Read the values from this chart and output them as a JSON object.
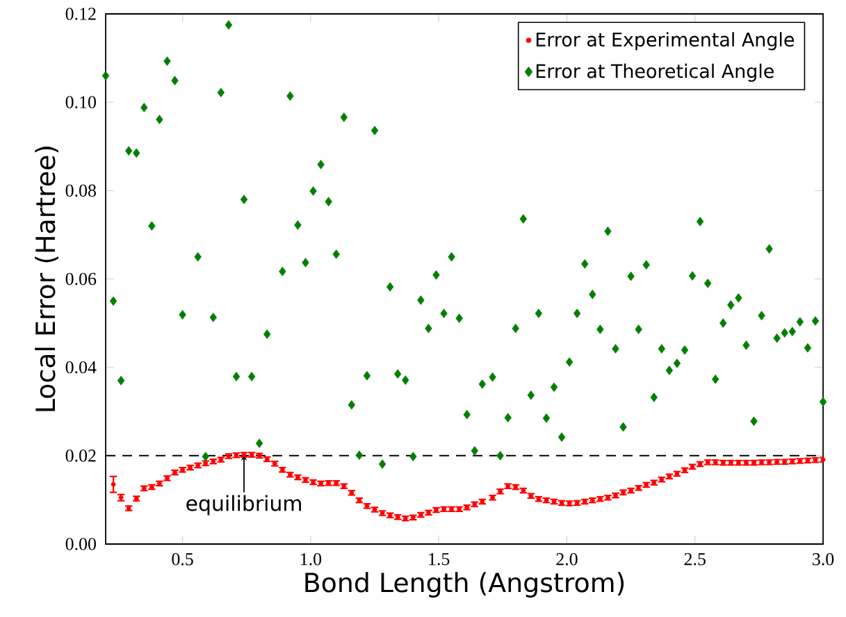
{
  "chart_data": {
    "type": "scatter",
    "xlabel": "Bond Length (Angstrom)",
    "ylabel": "Local Error (Hartree)",
    "xlim": [
      0.2,
      3.0
    ],
    "ylim": [
      0,
      0.12
    ],
    "xticks": [
      {
        "value": 0.5,
        "label": "0.5"
      },
      {
        "value": 1.0,
        "label": "1.0"
      },
      {
        "value": 1.5,
        "label": "1.5"
      },
      {
        "value": 2.0,
        "label": "2.0"
      },
      {
        "value": 2.5,
        "label": "2.5"
      },
      {
        "value": 3.0,
        "label": "3.0"
      }
    ],
    "yticks": [
      {
        "value": 0,
        "label": "0.00"
      },
      {
        "value": 0.02,
        "label": "0.02"
      },
      {
        "value": 0.04,
        "label": "0.04"
      },
      {
        "value": 0.06,
        "label": "0.06"
      },
      {
        "value": 0.08,
        "label": "0.08"
      },
      {
        "value": 0.1,
        "label": "0.10"
      },
      {
        "value": 0.12,
        "label": "0.12"
      }
    ],
    "legend": "top right",
    "ref_lines": [
      {
        "axis": "y",
        "value": 0.02,
        "color": "#000000",
        "line_style": "dashed"
      }
    ],
    "annotations": [
      {
        "text": "equilibrium",
        "x": 0.74,
        "y": 0.0202
      }
    ],
    "series": [
      {
        "name": "Error at Experimental Angle",
        "color": "#ff0000",
        "marker": "circle",
        "x": [
          0.23,
          0.26,
          0.29,
          0.32,
          0.35,
          0.38,
          0.41,
          0.44,
          0.47,
          0.5,
          0.53,
          0.56,
          0.59,
          0.62,
          0.65,
          0.68,
          0.71,
          0.74,
          0.77,
          0.8,
          0.83,
          0.86,
          0.89,
          0.92,
          0.95,
          0.98,
          1.01,
          1.04,
          1.07,
          1.1,
          1.13,
          1.16,
          1.19,
          1.22,
          1.25,
          1.28,
          1.31,
          1.34,
          1.37,
          1.4,
          1.43,
          1.46,
          1.49,
          1.52,
          1.55,
          1.58,
          1.61,
          1.64,
          1.67,
          1.71,
          1.74,
          1.77,
          1.8,
          1.83,
          1.86,
          1.89,
          1.92,
          1.95,
          1.98,
          2.01,
          2.04,
          2.07,
          2.1,
          2.13,
          2.16,
          2.19,
          2.22,
          2.25,
          2.28,
          2.31,
          2.34,
          2.37,
          2.4,
          2.43,
          2.46,
          2.49,
          2.52,
          2.55,
          2.58,
          2.61,
          2.64,
          2.67,
          2.7,
          2.73,
          2.76,
          2.79,
          2.82,
          2.85,
          2.88,
          2.91,
          2.94,
          2.97,
          3.0
        ],
        "values": [
          0.0135,
          0.0105,
          0.0081,
          0.0103,
          0.0126,
          0.0129,
          0.0137,
          0.0149,
          0.0162,
          0.0168,
          0.0173,
          0.0178,
          0.0183,
          0.0187,
          0.0191,
          0.0199,
          0.0201,
          0.0202,
          0.0202,
          0.02,
          0.0192,
          0.0182,
          0.0168,
          0.0157,
          0.0151,
          0.0145,
          0.014,
          0.0137,
          0.0138,
          0.0138,
          0.0131,
          0.0116,
          0.0099,
          0.0086,
          0.0078,
          0.007,
          0.0065,
          0.0061,
          0.0058,
          0.006,
          0.0066,
          0.0071,
          0.0077,
          0.0079,
          0.0079,
          0.0079,
          0.0083,
          0.009,
          0.0096,
          0.0105,
          0.0119,
          0.0131,
          0.0129,
          0.0121,
          0.0109,
          0.0102,
          0.0099,
          0.0096,
          0.0093,
          0.0092,
          0.0093,
          0.0096,
          0.0099,
          0.0102,
          0.0105,
          0.011,
          0.0117,
          0.0121,
          0.0127,
          0.0134,
          0.0139,
          0.0146,
          0.0153,
          0.0159,
          0.0167,
          0.0175,
          0.0181,
          0.0185,
          0.0185,
          0.0184,
          0.0184,
          0.0184,
          0.0184,
          0.0184,
          0.0185,
          0.0185,
          0.0186,
          0.0186,
          0.0187,
          0.0188,
          0.0189,
          0.019,
          0.0191
        ],
        "errors": [
          0.0018,
          0.0007,
          0.0005,
          0.0005,
          0.0005,
          0.0005,
          0.0005,
          0.0005,
          0.0005,
          0.0005,
          0.0005,
          0.0005,
          0.0005,
          0.0005,
          0.0005,
          0.0005,
          0.0005,
          0.0005,
          0.0005,
          0.0005,
          0.0005,
          0.0005,
          0.0005,
          0.0005,
          0.0005,
          0.0005,
          0.0005,
          0.0005,
          0.0005,
          0.0005,
          0.0005,
          0.0005,
          0.0005,
          0.0005,
          0.0005,
          0.0005,
          0.0005,
          0.0005,
          0.0005,
          0.0005,
          0.0005,
          0.0005,
          0.0005,
          0.0005,
          0.0005,
          0.0005,
          0.0005,
          0.0005,
          0.0005,
          0.0005,
          0.0005,
          0.0005,
          0.0005,
          0.0005,
          0.0005,
          0.0005,
          0.0005,
          0.0005,
          0.0005,
          0.0005,
          0.0005,
          0.0005,
          0.0005,
          0.0005,
          0.0005,
          0.0005,
          0.0005,
          0.0005,
          0.0005,
          0.0005,
          0.0005,
          0.0005,
          0.0005,
          0.0005,
          0.0005,
          0.0005,
          0.0005,
          0.0005,
          0.0005,
          0.0005,
          0.0005,
          0.0005,
          0.0005,
          0.0005,
          0.0005,
          0.0005,
          0.0005,
          0.0005,
          0.0005,
          0.0005,
          0.0005,
          0.0005,
          0.0005
        ]
      },
      {
        "name": "Error at Theoretical Angle",
        "color": "#008000",
        "marker": "diamond",
        "x": [
          0.2,
          0.23,
          0.26,
          0.29,
          0.32,
          0.35,
          0.38,
          0.41,
          0.44,
          0.47,
          0.5,
          0.56,
          0.59,
          0.62,
          0.65,
          0.68,
          0.71,
          0.74,
          0.77,
          0.8,
          0.83,
          0.89,
          0.92,
          0.95,
          0.98,
          1.01,
          1.04,
          1.07,
          1.1,
          1.13,
          1.16,
          1.19,
          1.22,
          1.25,
          1.28,
          1.31,
          1.34,
          1.37,
          1.4,
          1.43,
          1.46,
          1.49,
          1.52,
          1.55,
          1.58,
          1.61,
          1.64,
          1.67,
          1.71,
          1.74,
          1.77,
          1.8,
          1.83,
          1.86,
          1.89,
          1.92,
          1.95,
          1.98,
          2.01,
          2.04,
          2.07,
          2.1,
          2.13,
          2.16,
          2.19,
          2.22,
          2.25,
          2.28,
          2.31,
          2.34,
          2.37,
          2.4,
          2.43,
          2.46,
          2.49,
          2.52,
          2.55,
          2.58,
          2.61,
          2.64,
          2.67,
          2.7,
          2.73,
          2.76,
          2.79,
          2.82,
          2.85,
          2.88,
          2.91,
          2.94,
          2.97,
          3.0
        ],
        "values": [
          0.106,
          0.055,
          0.037,
          0.089,
          0.0885,
          0.0988,
          0.072,
          0.0961,
          0.1093,
          0.1049,
          0.0519,
          0.065,
          0.0198,
          0.0513,
          0.1022,
          0.1175,
          0.0379,
          0.078,
          0.0379,
          0.0228,
          0.0475,
          0.0617,
          0.1014,
          0.0722,
          0.0637,
          0.0799,
          0.0859,
          0.0775,
          0.0656,
          0.0966,
          0.0315,
          0.0201,
          0.0381,
          0.0936,
          0.0181,
          0.0582,
          0.0385,
          0.0371,
          0.0198,
          0.0552,
          0.0488,
          0.0609,
          0.0522,
          0.065,
          0.0511,
          0.0293,
          0.0211,
          0.0362,
          0.0378,
          0.02,
          0.0286,
          0.0488,
          0.0736,
          0.0337,
          0.0522,
          0.0285,
          0.0355,
          0.0242,
          0.0412,
          0.0522,
          0.0634,
          0.0565,
          0.0486,
          0.0708,
          0.0442,
          0.0265,
          0.0606,
          0.0486,
          0.0632,
          0.0332,
          0.0442,
          0.0393,
          0.0409,
          0.0439,
          0.0607,
          0.073,
          0.059,
          0.0373,
          0.05,
          0.0541,
          0.0557,
          0.045,
          0.0278,
          0.0517,
          0.0668,
          0.0466,
          0.0478,
          0.0481,
          0.0503,
          0.0444,
          0.0505,
          0.0322
        ]
      }
    ]
  }
}
